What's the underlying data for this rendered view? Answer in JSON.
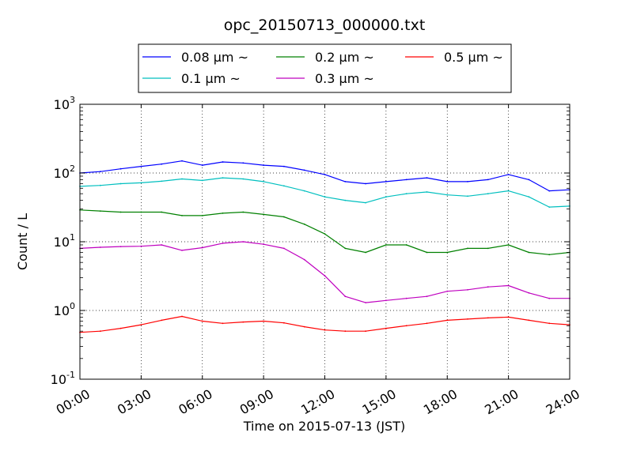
{
  "chart_data": {
    "type": "line",
    "title": "opc_20150713_000000.txt",
    "xlabel": "Time on 2015-07-13 (JST)",
    "ylabel": "Count / L",
    "yscale": "log",
    "ylim": [
      0.1,
      1000
    ],
    "xlim": [
      "2015-07-13 00:00",
      "2015-07-14 00:00"
    ],
    "x_unit": "hour",
    "grid": true,
    "legend_position": "top",
    "x_ticks": [
      {
        "value": 0,
        "label": "00:00"
      },
      {
        "value": 3,
        "label": "03:00"
      },
      {
        "value": 6,
        "label": "06:00"
      },
      {
        "value": 9,
        "label": "09:00"
      },
      {
        "value": 12,
        "label": "12:00"
      },
      {
        "value": 15,
        "label": "15:00"
      },
      {
        "value": 18,
        "label": "18:00"
      },
      {
        "value": 21,
        "label": "21:00"
      },
      {
        "value": 24,
        "label": "24:00"
      }
    ],
    "y_ticks": [
      {
        "value": 0.1,
        "base": "10",
        "exp": "-1"
      },
      {
        "value": 1,
        "base": "10",
        "exp": "0"
      },
      {
        "value": 10,
        "base": "10",
        "exp": "1"
      },
      {
        "value": 100,
        "base": "10",
        "exp": "2"
      },
      {
        "value": 1000,
        "base": "10",
        "exp": "3"
      }
    ],
    "x": [
      0,
      1,
      2,
      3,
      4,
      5,
      6,
      7,
      8,
      9,
      10,
      11,
      12,
      13,
      14,
      15,
      16,
      17,
      18,
      19,
      20,
      21,
      22,
      23,
      24
    ],
    "series": [
      {
        "name": "0.08 μm ~",
        "color": "#0000ff",
        "values": [
          100,
          105,
          115,
          125,
          135,
          150,
          130,
          145,
          140,
          130,
          125,
          110,
          95,
          75,
          70,
          75,
          80,
          85,
          75,
          75,
          80,
          95,
          80,
          55,
          57
        ]
      },
      {
        "name": "0.1 μm ~",
        "color": "#00bfbf",
        "values": [
          64,
          66,
          70,
          72,
          76,
          82,
          78,
          85,
          82,
          75,
          65,
          55,
          45,
          40,
          37,
          45,
          50,
          53,
          48,
          46,
          50,
          55,
          45,
          32,
          33
        ]
      },
      {
        "name": "0.2 μm ~",
        "color": "#008000",
        "values": [
          29,
          28,
          27,
          27,
          27,
          24,
          24,
          26,
          27,
          25,
          23,
          18,
          13,
          8,
          7,
          9,
          9,
          7,
          7,
          8,
          8,
          9,
          7,
          6.5,
          7
        ]
      },
      {
        "name": "0.3 μm ~",
        "color": "#bf00bf",
        "values": [
          8,
          8.3,
          8.5,
          8.6,
          9,
          7.5,
          8.2,
          9.5,
          10,
          9.2,
          8,
          5.5,
          3.2,
          1.6,
          1.3,
          1.4,
          1.5,
          1.6,
          1.9,
          2.0,
          2.2,
          2.3,
          1.8,
          1.5,
          1.5
        ]
      },
      {
        "name": "0.5 μm ~",
        "color": "#ff0000",
        "values": [
          0.48,
          0.5,
          0.55,
          0.62,
          0.72,
          0.82,
          0.7,
          0.65,
          0.68,
          0.7,
          0.66,
          0.58,
          0.52,
          0.5,
          0.5,
          0.55,
          0.6,
          0.65,
          0.72,
          0.75,
          0.78,
          0.8,
          0.72,
          0.65,
          0.62
        ]
      }
    ]
  }
}
